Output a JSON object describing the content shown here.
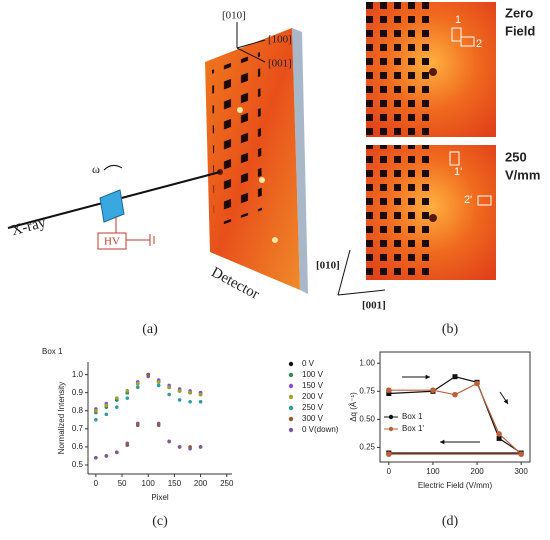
{
  "figure": {
    "a": {
      "axes": [
        "[010]",
        "[100]",
        "[001]"
      ],
      "xray": "X-ray",
      "omega": "ω",
      "hv": "HV",
      "detector": "Detector",
      "caption": "(a)"
    },
    "b": {
      "box1": "1",
      "box2": "2",
      "zero": [
        "Zero",
        "Field"
      ],
      "box1p": "1'",
      "box2p": "2'",
      "field": [
        "250",
        "V/mm"
      ],
      "axes": [
        "[010]",
        "[001]"
      ],
      "caption": "(b)"
    },
    "c_caption": "(c)",
    "d_caption": "(d)"
  },
  "chart_data": [
    {
      "type": "scatter",
      "title": "Box 1",
      "xlabel": "Pixel",
      "ylabel": "Normalized Intensity",
      "x": [
        0,
        20,
        40,
        60,
        80,
        100,
        120,
        140,
        160,
        180,
        200
      ],
      "series": [
        {
          "name": "0 V",
          "color": "#111111",
          "values": [
            0.8,
            0.83,
            0.86,
            0.9,
            0.95,
            1.0,
            0.96,
            0.93,
            0.91,
            0.9,
            0.89
          ]
        },
        {
          "name": "100 V",
          "color": "#2e8b57",
          "values": [
            0.79,
            0.82,
            0.86,
            0.9,
            0.95,
            1.0,
            0.96,
            0.93,
            0.91,
            0.9,
            0.9
          ]
        },
        {
          "name": "150 V",
          "color": "#8a4fd1",
          "values": [
            0.81,
            0.84,
            0.87,
            0.91,
            0.96,
            1.0,
            0.97,
            0.94,
            0.92,
            0.91,
            0.9
          ]
        },
        {
          "name": "200 V",
          "color": "#9aa52a",
          "values": [
            0.8,
            0.83,
            0.87,
            0.91,
            0.95,
            1.0,
            0.96,
            0.93,
            0.91,
            0.9,
            0.89
          ]
        },
        {
          "name": "250 V",
          "color": "#2a9d9d",
          "values": [
            0.75,
            0.78,
            0.82,
            0.87,
            0.93,
            1.0,
            0.94,
            0.89,
            0.86,
            0.85,
            0.85
          ]
        },
        {
          "name": "300 V",
          "color": "#a0522d",
          "values": [
            0.54,
            0.55,
            0.57,
            0.61,
            0.72,
            1.0,
            0.72,
            0.63,
            0.6,
            0.6,
            0.6
          ]
        },
        {
          "name": "0 V(down)",
          "color": "#7b5a9a",
          "values": [
            0.54,
            0.55,
            0.57,
            0.62,
            0.73,
            0.99,
            0.73,
            0.63,
            0.6,
            0.59,
            0.6
          ]
        }
      ],
      "xlim": [
        -15,
        260
      ],
      "ylim": [
        0.45,
        1.07
      ],
      "xticks": [
        0,
        50,
        100,
        150,
        200,
        250
      ],
      "yticks": [
        0.5,
        0.6,
        0.7,
        0.8,
        0.9,
        {
          "value": 1,
          "label": "1.0"
        }
      ],
      "legend": "right",
      "frame": "left-bottom"
    },
    {
      "type": "line",
      "xlabel": "Electric Field (V/mm)",
      "ylabel": "Δq (Å⁻¹)",
      "x": [
        0,
        100,
        150,
        200,
        250,
        300,
        0
      ],
      "series": [
        {
          "name": "Box 1",
          "color": "#111111",
          "values": [
            0.73,
            0.75,
            0.88,
            0.83,
            0.33,
            0.2,
            0.2
          ]
        },
        {
          "name": "Box 1'",
          "color": "#c0603a",
          "values": [
            0.76,
            0.76,
            0.72,
            0.82,
            0.37,
            0.19,
            0.19
          ]
        }
      ],
      "xlim": [
        -20,
        320
      ],
      "ylim": [
        0.12,
        1.1
      ],
      "xticks": [
        0,
        100,
        200,
        300
      ],
      "yticks": [
        0.25,
        {
          "value": 0.5,
          "label": "0.50"
        },
        0.75,
        {
          "value": 1,
          "label": "1.00"
        }
      ],
      "legend": "center-left",
      "frame": "box"
    }
  ]
}
